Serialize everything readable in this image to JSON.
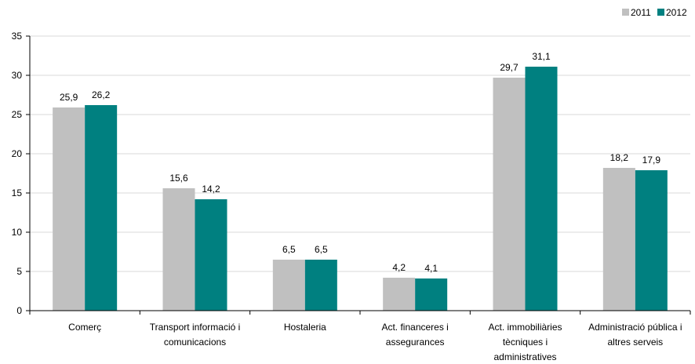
{
  "chart_data": {
    "type": "bar",
    "title": "",
    "xlabel": "",
    "ylabel": "",
    "ylim": [
      0,
      35
    ],
    "yticks": [
      0,
      5,
      10,
      15,
      20,
      25,
      30,
      35
    ],
    "grid": true,
    "legend_position": "top-right",
    "categories": [
      [
        "Comerç"
      ],
      [
        "Transport informació i",
        "comunicacions"
      ],
      [
        "Hostaleria"
      ],
      [
        "Act. financeres i",
        "assegurances"
      ],
      [
        "Act. immobiliàries",
        "tècniques i",
        "administratives"
      ],
      [
        "Administració pública i",
        "altres serveis"
      ]
    ],
    "series": [
      {
        "name": "2011",
        "color": "#c0c0c0",
        "values": [
          25.9,
          15.6,
          6.5,
          4.2,
          29.7,
          18.2
        ],
        "labels": [
          "25,9",
          "15,6",
          "6,5",
          "4,2",
          "29,7",
          "18,2"
        ]
      },
      {
        "name": "2012",
        "color": "#008080",
        "values": [
          26.2,
          14.2,
          6.5,
          4.1,
          31.1,
          17.9
        ],
        "labels": [
          "26,2",
          "14,2",
          "6,5",
          "4,1",
          "31,1",
          "17,9"
        ]
      }
    ]
  }
}
